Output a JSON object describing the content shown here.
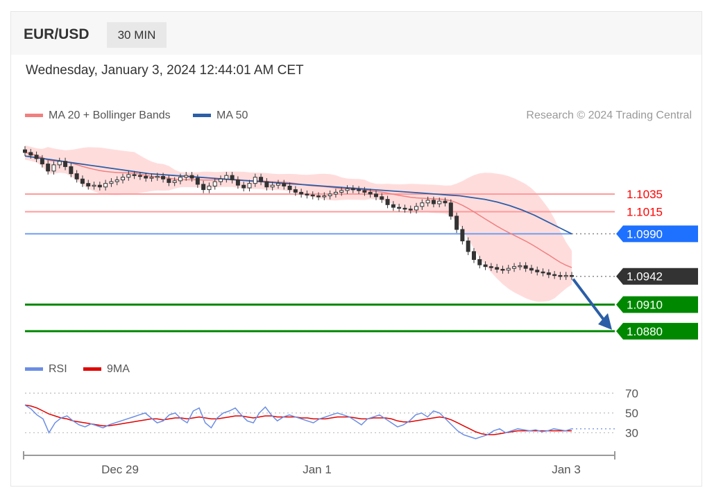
{
  "header": {
    "symbol": "EUR/USD",
    "timeframe": "30 MIN"
  },
  "datetime": "Wednesday, January 3, 2024 12:44:01 AM CET",
  "legend": {
    "ma20": {
      "label": "MA 20 + Bollinger Bands",
      "color": "#f08080"
    },
    "ma50": {
      "label": "MA 50",
      "color": "#2b5ea7"
    },
    "credit": "Research © 2024 Trading Central"
  },
  "rsi_legend": {
    "rsi": {
      "label": "RSI",
      "color": "#6b8de3"
    },
    "ma9": {
      "label": "9MA",
      "color": "#e00000"
    }
  },
  "chart_data": [
    {
      "type": "line",
      "name": "price",
      "price_range": [
        1.0865,
        1.11
      ],
      "levels": [
        {
          "label": "1.1035",
          "value": 1.1035,
          "color": "#ff9a9a",
          "label_color": "#ff0000",
          "style": "text"
        },
        {
          "label": "1.1015",
          "value": 1.1015,
          "color": "#ff9a9a",
          "label_color": "#ff0000",
          "style": "text"
        },
        {
          "label": "1.0990",
          "value": 1.099,
          "color": "#6e9ef0",
          "label_color": "#ffffff",
          "bg": "#1e70ff",
          "style": "tag"
        },
        {
          "label": "1.0942",
          "value": 1.0942,
          "color": "#888888",
          "label_color": "#ffffff",
          "bg": "#333333",
          "style": "tag"
        },
        {
          "label": "1.0910",
          "value": 1.091,
          "color": "#008800",
          "label_color": "#ffffff",
          "bg": "#008800",
          "style": "tag"
        },
        {
          "label": "1.0880",
          "value": 1.088,
          "color": "#008800",
          "label_color": "#ffffff",
          "bg": "#008800",
          "style": "tag"
        }
      ],
      "close": [
        1.1082,
        1.1079,
        1.1075,
        1.1069,
        1.1061,
        1.1068,
        1.1072,
        1.1066,
        1.1058,
        1.1052,
        1.1047,
        1.1044,
        1.1045,
        1.1043,
        1.1047,
        1.1049,
        1.1051,
        1.1054,
        1.1057,
        1.1056,
        1.1055,
        1.1053,
        1.1054,
        1.1055,
        1.1052,
        1.1048,
        1.105,
        1.1054,
        1.1056,
        1.1053,
        1.1046,
        1.104,
        1.1044,
        1.1049,
        1.1052,
        1.1056,
        1.1051,
        1.1045,
        1.1042,
        1.1047,
        1.1054,
        1.1049,
        1.1043,
        1.1045,
        1.1047,
        1.1044,
        1.104,
        1.1037,
        1.1035,
        1.1034,
        1.1033,
        1.1032,
        1.1033,
        1.1035,
        1.1037,
        1.1039,
        1.1041,
        1.104,
        1.1039,
        1.1037,
        1.1035,
        1.1032,
        1.1029,
        1.1023,
        1.102,
        1.1019,
        1.1018,
        1.1017,
        1.1021,
        1.1025,
        1.1028,
        1.1024,
        1.1027,
        1.1025,
        1.101,
        1.0995,
        1.0982,
        1.097,
        1.0961,
        1.0955,
        1.0953,
        1.0952,
        1.095,
        1.0949,
        1.0951,
        1.0953,
        1.0954,
        1.0951,
        1.0949,
        1.0947,
        1.0946,
        1.0944,
        1.0943,
        1.0942,
        1.0943,
        1.0942
      ],
      "ma20_bollinger": {
        "color": "#f08080",
        "band_color": "#ffd3d3"
      },
      "ma50": [
        1.1078,
        1.1076,
        1.1074,
        1.1072,
        1.107,
        1.1068,
        1.1066,
        1.1064,
        1.1062,
        1.106,
        1.1058,
        1.1057,
        1.1056,
        1.1055,
        1.1054,
        1.1053,
        1.1052,
        1.1051,
        1.105,
        1.1049,
        1.1048,
        1.1047,
        1.1046,
        1.1045,
        1.1044,
        1.1043,
        1.1042,
        1.1041,
        1.104,
        1.1039,
        1.1038,
        1.1037,
        1.1036,
        1.1035,
        1.1034,
        1.1033,
        1.1031,
        1.1029,
        1.1026,
        1.1022,
        1.1017,
        1.1011,
        1.1004,
        1.0997,
        1.099
      ],
      "forecast_arrow": {
        "from": 1.0942,
        "to": 1.088,
        "color": "#2b5ea7"
      }
    },
    {
      "type": "line",
      "name": "rsi",
      "y_ticks": [
        70,
        50,
        30
      ],
      "ylim": [
        10,
        80
      ],
      "rsi": [
        58,
        54,
        48,
        44,
        30,
        40,
        45,
        47,
        42,
        38,
        36,
        39,
        37,
        35,
        38,
        40,
        42,
        44,
        46,
        48,
        50,
        45,
        40,
        42,
        48,
        50,
        44,
        40,
        52,
        55,
        40,
        35,
        45,
        50,
        52,
        55,
        48,
        42,
        40,
        50,
        56,
        48,
        42,
        46,
        48,
        46,
        44,
        42,
        40,
        44,
        46,
        48,
        50,
        48,
        46,
        42,
        38,
        44,
        46,
        48,
        44,
        40,
        36,
        38,
        42,
        48,
        50,
        46,
        52,
        50,
        44,
        38,
        32,
        28,
        26,
        24,
        26,
        28,
        32,
        34,
        30,
        32,
        34,
        33,
        32,
        33,
        31,
        32,
        34,
        33,
        32,
        34
      ],
      "ma9": [
        58,
        57,
        55,
        52,
        49,
        47,
        45,
        44,
        42,
        41,
        40,
        39,
        38,
        37,
        37,
        38,
        39,
        40,
        41,
        42,
        43,
        44,
        44,
        43,
        44,
        45,
        45,
        44,
        45,
        46,
        45,
        44,
        44,
        45,
        46,
        47,
        47,
        46,
        45,
        46,
        47,
        47,
        46,
        46,
        46,
        46,
        45,
        45,
        44,
        44,
        44,
        45,
        46,
        46,
        46,
        45,
        44,
        44,
        45,
        45,
        45,
        44,
        42,
        41,
        41,
        42,
        43,
        44,
        45,
        46,
        45,
        43,
        40,
        37,
        34,
        31,
        29,
        28,
        28,
        29,
        30,
        31,
        32,
        32,
        32,
        32,
        32,
        32,
        32,
        32,
        32,
        32
      ]
    }
  ],
  "x_axis": {
    "labels": [
      "Dec 29",
      "Jan 1",
      "Jan 3"
    ]
  }
}
